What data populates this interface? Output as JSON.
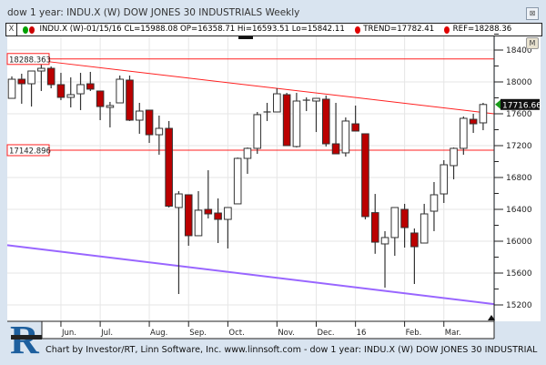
{
  "window": {
    "title": "dow 1 year: INDU.X (W) DOW JONES 30 INDUSTRIALS Weekly",
    "close_label": "⊠",
    "m_label": "M"
  },
  "legend": {
    "close_label": "X",
    "symbol_text": "INDU.X (W)-01/15/16 CL=15988.08 OP=16358.71 Hi=16593.51 Lo=15842.11",
    "trend_text": "TREND=17782.41",
    "ref_text": "REF=18288.36",
    "colors": {
      "up": "#00a000",
      "down": "#cc0000"
    }
  },
  "footer": {
    "text": "Chart by Investor/RT, Linn Software, Inc. www.linnsoft.com - dow 1 year: INDU.X (W) DOW JONES 30 INDUSTRIAL",
    "logo_letter": "R"
  },
  "chart_data": {
    "type": "candlestick",
    "ylim": [
      15100,
      18560
    ],
    "y_ticks": [
      15200,
      15600,
      16000,
      16400,
      16800,
      17200,
      17600,
      18000,
      18400
    ],
    "x_month_labels": [
      {
        "date": "2015-06-05",
        "label": "Jun."
      },
      {
        "date": "2015-07-03",
        "label": "Jul."
      },
      {
        "date": "2015-08-07",
        "label": "Aug."
      },
      {
        "date": "2015-09-04",
        "label": "Sep."
      },
      {
        "date": "2015-10-02",
        "label": "Oct."
      },
      {
        "date": "2015-11-06",
        "label": "Nov."
      },
      {
        "date": "2015-12-04",
        "label": "Dec."
      },
      {
        "date": "2016-01-01",
        "label": "16"
      },
      {
        "date": "2016-02-05",
        "label": "Feb."
      },
      {
        "date": "2016-03-04",
        "label": "Mar."
      }
    ],
    "grid": true,
    "colors": {
      "up_body": "#ffffff",
      "down_body": "#bb0000",
      "reference_line": "#ff2020",
      "trend_line": "#ff2020",
      "channel_line": "#9966ff",
      "last_price_marker": "#1a9a1a"
    },
    "candles": [
      {
        "date": "2015-05-01",
        "o": 17794,
        "h": 18069,
        "l": 17794,
        "c": 18034
      },
      {
        "date": "2015-05-08",
        "o": 18034,
        "h": 18103,
        "l": 17726,
        "c": 17977
      },
      {
        "date": "2015-05-15",
        "o": 17977,
        "h": 18137,
        "l": 17691,
        "c": 18137
      },
      {
        "date": "2015-05-22",
        "o": 18137,
        "h": 18250,
        "l": 17886,
        "c": 18171
      },
      {
        "date": "2015-05-29",
        "o": 18171,
        "h": 18194,
        "l": 17920,
        "c": 17966
      },
      {
        "date": "2015-06-05",
        "o": 17966,
        "h": 18114,
        "l": 17771,
        "c": 17806
      },
      {
        "date": "2015-06-12",
        "o": 17806,
        "h": 18057,
        "l": 17680,
        "c": 17840
      },
      {
        "date": "2015-06-19",
        "o": 17851,
        "h": 18114,
        "l": 17646,
        "c": 17966
      },
      {
        "date": "2015-06-26",
        "o": 17977,
        "h": 18126,
        "l": 17886,
        "c": 17909
      },
      {
        "date": "2015-07-03",
        "o": 17886,
        "h": 17886,
        "l": 17520,
        "c": 17691
      },
      {
        "date": "2015-07-10",
        "o": 17680,
        "h": 17749,
        "l": 17429,
        "c": 17703
      },
      {
        "date": "2015-07-17",
        "o": 17737,
        "h": 18080,
        "l": 17737,
        "c": 18034
      },
      {
        "date": "2015-07-24",
        "o": 18023,
        "h": 18080,
        "l": 17509,
        "c": 17520
      },
      {
        "date": "2015-07-31",
        "o": 17520,
        "h": 17737,
        "l": 17349,
        "c": 17634
      },
      {
        "date": "2015-08-07",
        "o": 17646,
        "h": 17646,
        "l": 17234,
        "c": 17337
      },
      {
        "date": "2015-08-14",
        "o": 17337,
        "h": 17577,
        "l": 17086,
        "c": 17417
      },
      {
        "date": "2015-08-21",
        "o": 17417,
        "h": 17509,
        "l": 16423,
        "c": 16440
      },
      {
        "date": "2015-08-28",
        "o": 16423,
        "h": 16629,
        "l": 15337,
        "c": 16594
      },
      {
        "date": "2015-09-04",
        "o": 16583,
        "h": 16583,
        "l": 15943,
        "c": 16069
      },
      {
        "date": "2015-09-11",
        "o": 16069,
        "h": 16629,
        "l": 16069,
        "c": 16389
      },
      {
        "date": "2015-09-18",
        "o": 16400,
        "h": 16891,
        "l": 16286,
        "c": 16343
      },
      {
        "date": "2015-09-25",
        "o": 16354,
        "h": 16537,
        "l": 15977,
        "c": 16274
      },
      {
        "date": "2015-10-02",
        "o": 16274,
        "h": 16423,
        "l": 15909,
        "c": 16423
      },
      {
        "date": "2015-10-09",
        "o": 16469,
        "h": 17051,
        "l": 16469,
        "c": 17040
      },
      {
        "date": "2015-10-16",
        "o": 17040,
        "h": 17177,
        "l": 16846,
        "c": 17166
      },
      {
        "date": "2015-10-23",
        "o": 17166,
        "h": 17623,
        "l": 17097,
        "c": 17589
      },
      {
        "date": "2015-10-30",
        "o": 17611,
        "h": 17737,
        "l": 17509,
        "c": 17623
      },
      {
        "date": "2015-11-06",
        "o": 17623,
        "h": 17920,
        "l": 17623,
        "c": 17851
      },
      {
        "date": "2015-11-13",
        "o": 17840,
        "h": 17863,
        "l": 17200,
        "c": 17200
      },
      {
        "date": "2015-11-20",
        "o": 17189,
        "h": 17863,
        "l": 17177,
        "c": 17760
      },
      {
        "date": "2015-11-27",
        "o": 17760,
        "h": 17806,
        "l": 17634,
        "c": 17771
      },
      {
        "date": "2015-12-04",
        "o": 17760,
        "h": 17794,
        "l": 17371,
        "c": 17794
      },
      {
        "date": "2015-12-11",
        "o": 17783,
        "h": 17829,
        "l": 17189,
        "c": 17223
      },
      {
        "date": "2015-12-18",
        "o": 17223,
        "h": 17737,
        "l": 17097,
        "c": 17097
      },
      {
        "date": "2015-12-25",
        "o": 17109,
        "h": 17554,
        "l": 17063,
        "c": 17509
      },
      {
        "date": "2016-01-01",
        "o": 17474,
        "h": 17703,
        "l": 17383,
        "c": 17383
      },
      {
        "date": "2016-01-08",
        "o": 17349,
        "h": 17349,
        "l": 16274,
        "c": 16309
      },
      {
        "date": "2016-01-15",
        "o": 16358.71,
        "h": 16593.51,
        "l": 15842.11,
        "c": 15988.08
      },
      {
        "date": "2016-01-22",
        "o": 15966,
        "h": 16126,
        "l": 15417,
        "c": 16046
      },
      {
        "date": "2016-01-29",
        "o": 16046,
        "h": 16423,
        "l": 15817,
        "c": 16423
      },
      {
        "date": "2016-02-05",
        "o": 16400,
        "h": 16469,
        "l": 15920,
        "c": 16171
      },
      {
        "date": "2016-02-12",
        "o": 16103,
        "h": 16160,
        "l": 15463,
        "c": 15931
      },
      {
        "date": "2016-02-19",
        "o": 15977,
        "h": 16469,
        "l": 15977,
        "c": 16343
      },
      {
        "date": "2016-02-26",
        "o": 16377,
        "h": 16743,
        "l": 16126,
        "c": 16583
      },
      {
        "date": "2016-03-04",
        "o": 16594,
        "h": 17017,
        "l": 16480,
        "c": 16960
      },
      {
        "date": "2016-03-11",
        "o": 16949,
        "h": 17177,
        "l": 16777,
        "c": 17166
      },
      {
        "date": "2016-03-18",
        "o": 17166,
        "h": 17566,
        "l": 17086,
        "c": 17543
      },
      {
        "date": "2016-03-25",
        "o": 17531,
        "h": 17600,
        "l": 17360,
        "c": 17474
      },
      {
        "date": "2016-04-01",
        "o": 17486,
        "h": 17737,
        "l": 17394,
        "c": 17716.66
      }
    ],
    "reference_lines": [
      {
        "value": 18288.363,
        "label": "18288.363"
      },
      {
        "value": 17142.896,
        "label": "17142.896"
      }
    ],
    "trend_line": {
      "from": {
        "date": "2015-05-22",
        "value": 18265
      },
      "to": {
        "date": "2016-04-08",
        "value": 17600
      }
    },
    "channel_line": {
      "from": {
        "date": "2015-04-27",
        "value": 15950
      },
      "to": {
        "date": "2016-04-08",
        "value": 15210
      }
    },
    "last_price_label": "17716.66"
  }
}
